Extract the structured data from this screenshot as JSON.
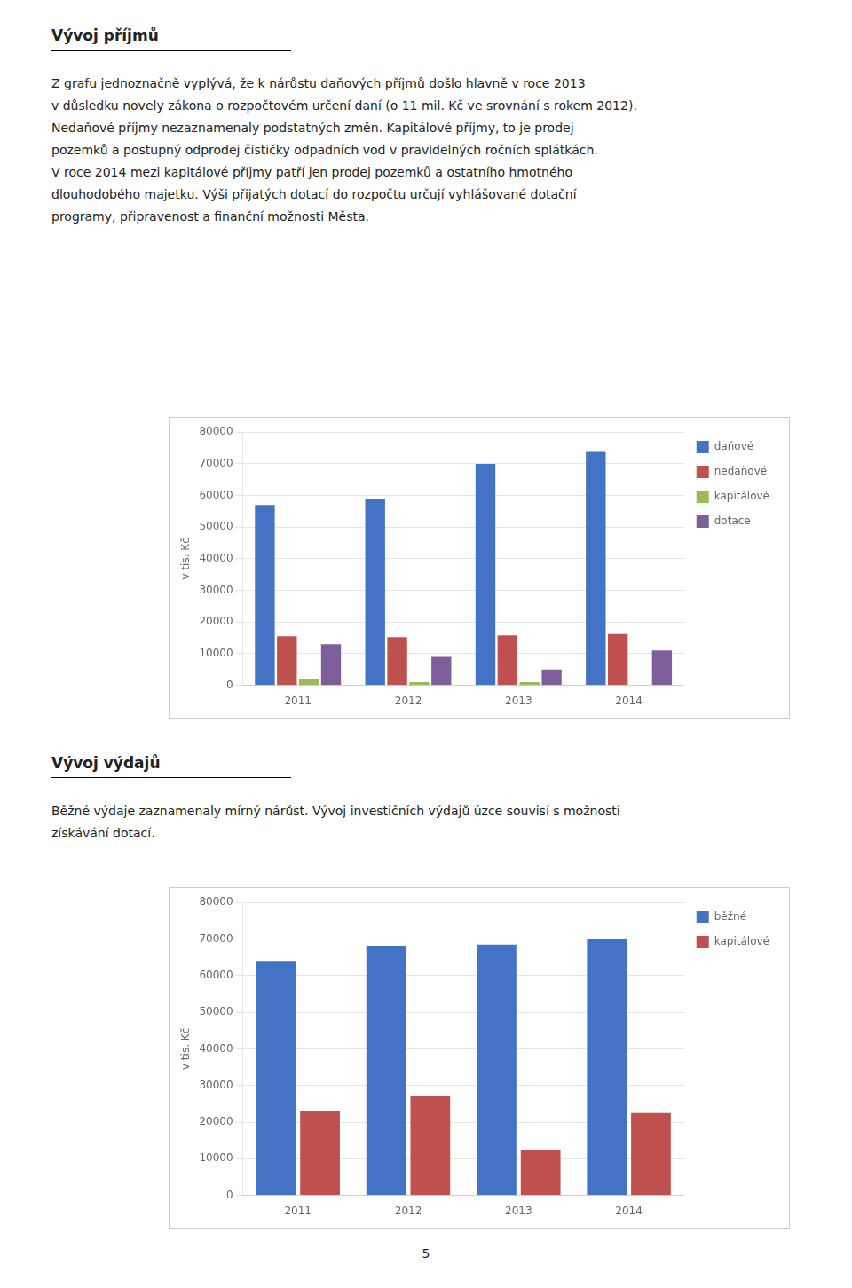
{
  "chart_data": [
    {
      "type": "bar",
      "title": "Vývoj příjmů",
      "annotations": [
        "Z grafu jednoznačně vyplývá, že k nárůstu daňových příjmů došlo hlavně v roce 2013",
        "v důsledku novely zákona o rozpočtovém určení daní (o 11 mil. Kč ve srovnání s rokem 2012).",
        "Nedaňové příjmy nezaznamenaly podstatných změn. Kapitálové příjmy, to je prodej",
        "pozemků a postupný odprodej čističky odpadních vod v pravidelných ročních splátkách.",
        "V roce 2014 mezi kapitálové příjmy patří jen prodej pozemků a ostatního hmotného",
        "dlouhodobého majetku. Výši přijatých dotací do rozpočtu určují vyhlášované dotační",
        "programy, připravenost a finanční možnosti Města."
      ],
      "ylabel": "v tis. Kč",
      "categories": [
        "2011",
        "2012",
        "2013",
        "2014"
      ],
      "series": [
        {
          "name": "daňové",
          "color": "#4472C4",
          "values": [
            57000,
            59000,
            70000,
            74000
          ]
        },
        {
          "name": "nedaňové",
          "color": "#C0504D",
          "values": [
            15500,
            15200,
            15800,
            16200
          ]
        },
        {
          "name": "kapitálové",
          "color": "#9BBB59",
          "values": [
            2000,
            1000,
            1000,
            0
          ]
        },
        {
          "name": "dotace",
          "color": "#7F5F9B",
          "values": [
            13000,
            9000,
            5000,
            11000
          ]
        }
      ],
      "ylim": [
        0,
        80000
      ],
      "yticks": [
        0,
        10000,
        20000,
        30000,
        40000,
        50000,
        60000,
        70000,
        80000
      ],
      "grid": true,
      "legend": "upper right"
    },
    {
      "type": "bar",
      "title": "Vývoj výdajů",
      "annotations": [
        "Běžné výdaje zaznamenaly mírný nárůst. Vývoj investičních výdajů úzce souvisí s možností",
        "získávání dotací."
      ],
      "ylabel": "v tis. Kč",
      "categories": [
        "2011",
        "2012",
        "2013",
        "2014"
      ],
      "series": [
        {
          "name": "běžné",
          "color": "#4472C4",
          "values": [
            64000,
            68000,
            68500,
            70000
          ]
        },
        {
          "name": "kapitálové",
          "color": "#C0504D",
          "values": [
            23000,
            27000,
            12500,
            22500
          ]
        }
      ],
      "ylim": [
        0,
        80000
      ],
      "yticks": [
        0,
        10000,
        20000,
        30000,
        40000,
        50000,
        60000,
        70000,
        80000
      ],
      "grid": true,
      "legend": "upper right"
    }
  ],
  "annotations": [
    "5"
  ]
}
